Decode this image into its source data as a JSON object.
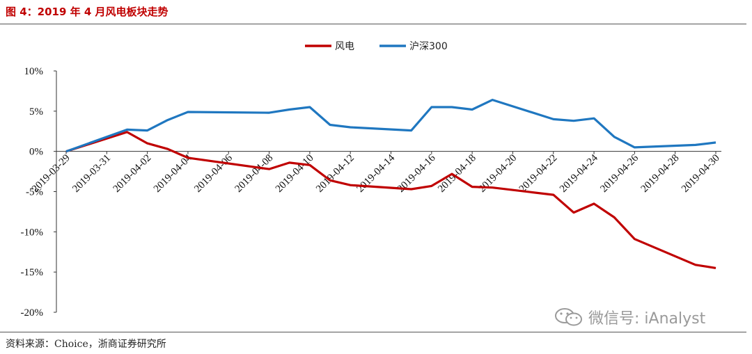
{
  "header": {
    "title": "图 4：2019 年 4 月风电板块走势"
  },
  "footer": {
    "source": "资料来源：Choice，浙商证券研究所"
  },
  "watermark": {
    "text": "微信号: iAnalyst",
    "icon": "wechat-icon"
  },
  "chart_data": {
    "type": "line",
    "title": "",
    "xlabel": "",
    "ylabel": "",
    "ylim": [
      -20,
      10
    ],
    "yticks": [
      "10%",
      "5%",
      "0%",
      "-5%",
      "-10%",
      "-15%",
      "-20%"
    ],
    "ytick_values": [
      10,
      5,
      0,
      -5,
      -10,
      -15,
      -20
    ],
    "xticks": [
      "2019-03-29",
      "2019-03-31",
      "2019-04-02",
      "2019-04-04",
      "2019-04-06",
      "2019-04-08",
      "2019-04-10",
      "2019-04-12",
      "2019-04-14",
      "2019-04-16",
      "2019-04-18",
      "2019-04-20",
      "2019-04-22",
      "2019-04-24",
      "2019-04-26",
      "2019-04-28",
      "2019-04-30"
    ],
    "x": [
      "2019-03-29",
      "2019-04-01",
      "2019-04-02",
      "2019-04-03",
      "2019-04-04",
      "2019-04-08",
      "2019-04-09",
      "2019-04-10",
      "2019-04-11",
      "2019-04-12",
      "2019-04-15",
      "2019-04-16",
      "2019-04-17",
      "2019-04-18",
      "2019-04-19",
      "2019-04-22",
      "2019-04-23",
      "2019-04-24",
      "2019-04-25",
      "2019-04-26",
      "2019-04-29",
      "2019-04-30"
    ],
    "series": [
      {
        "name": "风电",
        "color": "#c00000",
        "values": [
          0.0,
          2.4,
          1.0,
          0.3,
          -0.8,
          -2.2,
          -1.4,
          -1.7,
          -3.6,
          -4.2,
          -4.7,
          -4.3,
          -2.8,
          -4.4,
          -4.5,
          -5.4,
          -7.6,
          -6.5,
          -8.2,
          -10.9,
          -14.1,
          -14.5
        ]
      },
      {
        "name": "沪深300",
        "color": "#1f77c0",
        "values": [
          0.0,
          2.7,
          2.6,
          3.9,
          4.9,
          4.8,
          5.2,
          5.5,
          3.3,
          3.0,
          2.6,
          5.5,
          5.5,
          5.2,
          6.4,
          4.0,
          3.8,
          4.1,
          1.8,
          0.5,
          0.8,
          1.1
        ]
      }
    ],
    "legend": "top-center",
    "grid": false
  }
}
